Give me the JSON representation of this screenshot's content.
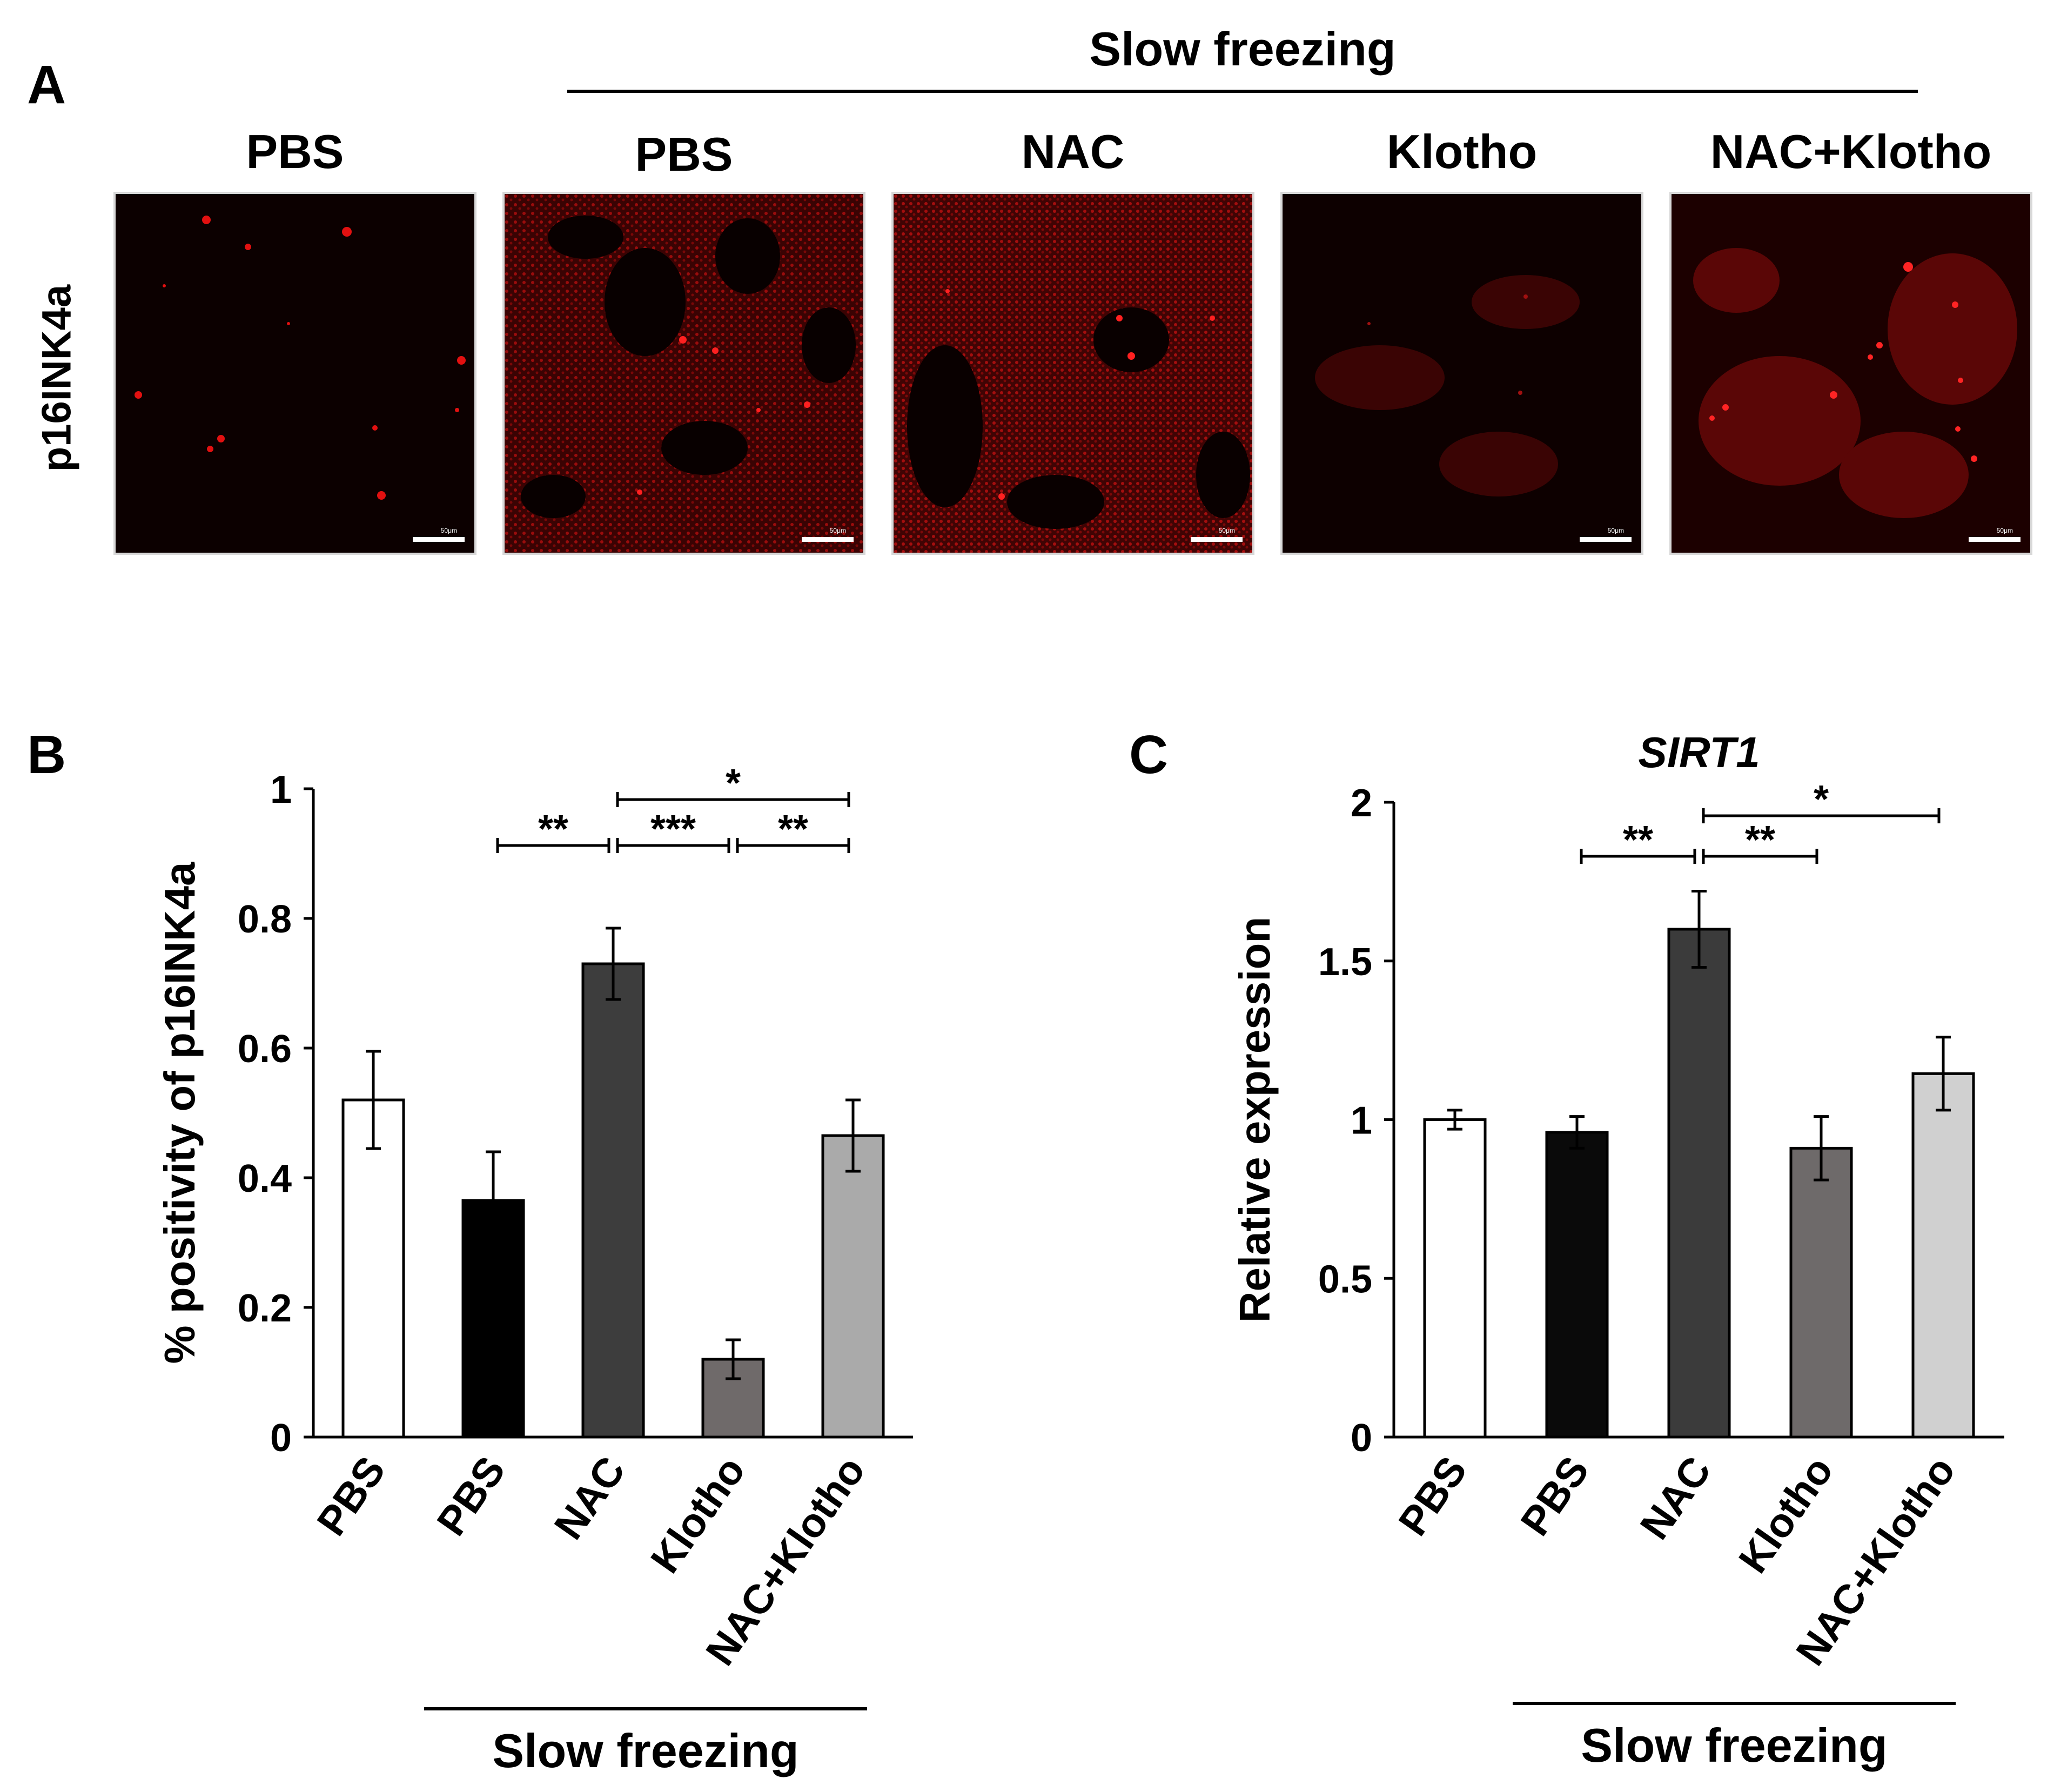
{
  "panel_a": {
    "letter": "A",
    "group_header": "Slow freezing",
    "row_label": "p16INK4a",
    "scale_bar_text": "50μm",
    "columns": [
      "PBS",
      "PBS",
      "NAC",
      "Klotho",
      "NAC+Klotho"
    ]
  },
  "panel_b": {
    "letter": "B",
    "bottom_group_label": "Slow freezing"
  },
  "panel_c": {
    "letter": "C",
    "bottom_group_label": "Slow freezing"
  },
  "colors": {
    "bar_fills": [
      "#ffffff",
      "#000000",
      "#3d3d3d",
      "#6f6a6a",
      "#aaaaaa"
    ],
    "bar_fills_c": [
      "#ffffff",
      "#0a0a0a",
      "#3b3b3b",
      "#6e6a6a",
      "#d0d0d0"
    ],
    "micro_signal": "#e01010",
    "micro_background": "#0c0000"
  },
  "chart_data": [
    {
      "type": "bar",
      "panel": "B",
      "title": "",
      "categories": [
        "PBS",
        "PBS",
        "NAC",
        "Klotho",
        "NAC+Klotho"
      ],
      "values": [
        0.52,
        0.365,
        0.73,
        0.12,
        0.465
      ],
      "errors": [
        0.075,
        0.075,
        0.055,
        0.03,
        0.055
      ],
      "ylabel": "% positivity of p16INK4a",
      "xlabel": "",
      "ylim": [
        0,
        1
      ],
      "yticks": [
        "0",
        "0.2",
        "0.4",
        "0.6",
        "0.8",
        "1"
      ],
      "significance": [
        {
          "from": 1,
          "to": 2,
          "label": "**",
          "level": 1
        },
        {
          "from": 2,
          "to": 3,
          "label": "***",
          "level": 1
        },
        {
          "from": 3,
          "to": 4,
          "label": "**",
          "level": 1
        },
        {
          "from": 2,
          "to": 4,
          "label": "*",
          "level": 2
        }
      ]
    },
    {
      "type": "bar",
      "panel": "C",
      "title": "SIRT1",
      "categories": [
        "PBS",
        "PBS",
        "NAC",
        "Klotho",
        "NAC+Klotho"
      ],
      "values": [
        1.0,
        0.96,
        1.6,
        0.91,
        1.145
      ],
      "errors": [
        0.03,
        0.05,
        0.12,
        0.1,
        0.115
      ],
      "ylabel": "Relative expression",
      "xlabel": "",
      "ylim": [
        0,
        2
      ],
      "yticks": [
        "0",
        "0.5",
        "1",
        "1.5",
        "2"
      ],
      "significance": [
        {
          "from": 1,
          "to": 2,
          "label": "**",
          "level": 1
        },
        {
          "from": 2,
          "to": 3,
          "label": "**",
          "level": 1
        },
        {
          "from": 2,
          "to": 4,
          "label": "*",
          "level": 2
        }
      ]
    }
  ]
}
